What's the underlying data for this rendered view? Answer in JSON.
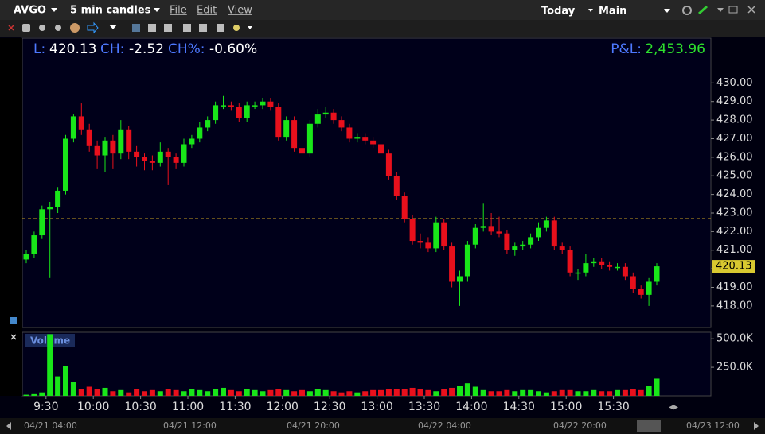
{
  "toolbar": {
    "symbol": "AVGO",
    "interval": "5 min candles",
    "menu": [
      "File",
      "Edit",
      "View"
    ],
    "period": "Today",
    "layout": "Main"
  },
  "header": {
    "last_label": "L:",
    "last": "420.13",
    "change_label": "CH:",
    "change": "-2.52",
    "change_pct_label": "CH%:",
    "change_pct": "-0.60%",
    "pnl_label": "P&L:",
    "pnl": "2,453.96"
  },
  "timeline": [
    "04/21 04:00",
    "04/21 12:00",
    "04/21 20:00",
    "04/22 04:00",
    "04/22 20:00",
    "04/23 12:00"
  ],
  "chart_data": [
    {
      "type": "candlestick",
      "up_color": "#19e619",
      "down_color": "#e8101c",
      "categories": [
        "9:20",
        "9:25",
        "9:30",
        "9:35",
        "9:40",
        "9:45",
        "9:50",
        "9:55",
        "10:00",
        "10:05",
        "10:10",
        "10:15",
        "10:20",
        "10:25",
        "10:30",
        "10:35",
        "10:40",
        "10:45",
        "10:50",
        "10:55",
        "11:00",
        "11:05",
        "11:10",
        "11:15",
        "11:20",
        "11:25",
        "11:30",
        "11:35",
        "11:40",
        "11:45",
        "11:50",
        "11:55",
        "12:00",
        "12:05",
        "12:10",
        "12:15",
        "12:20",
        "12:25",
        "12:30",
        "12:35",
        "12:40",
        "12:45",
        "12:50",
        "12:55",
        "13:00",
        "13:05",
        "13:10",
        "13:15",
        "13:20",
        "13:25",
        "13:30",
        "13:35",
        "13:40",
        "13:45",
        "13:50",
        "13:55",
        "14:00",
        "14:05",
        "14:10",
        "14:15",
        "14:20",
        "14:25",
        "14:30",
        "14:35",
        "14:40",
        "14:45",
        "14:50",
        "14:55",
        "15:00",
        "15:05",
        "15:10",
        "15:15",
        "15:20",
        "15:25",
        "15:30",
        "15:35",
        "15:40",
        "15:45",
        "15:50",
        "15:55",
        "16:00"
      ],
      "open": [
        420.5,
        420.8,
        421.8,
        423.2,
        423.3,
        424.2,
        427.0,
        428.2,
        427.5,
        426.6,
        426.1,
        426.9,
        426.2,
        427.5,
        426.3,
        426.0,
        425.8,
        425.7,
        426.3,
        426.0,
        425.7,
        426.7,
        427.0,
        427.6,
        428.0,
        428.8,
        428.8,
        428.7,
        428.1,
        428.8,
        428.8,
        429.0,
        428.7,
        427.1,
        428.0,
        426.5,
        426.2,
        427.8,
        428.3,
        428.4,
        428.0,
        427.6,
        427.0,
        427.1,
        426.9,
        426.7,
        426.2,
        425.0,
        423.9,
        422.7,
        421.5,
        421.4,
        421.1,
        422.5,
        421.2,
        419.3,
        419.6,
        421.3,
        422.2,
        422.3,
        422.0,
        421.9,
        421.0,
        421.2,
        421.3,
        421.7,
        422.2,
        422.6,
        421.2,
        421.0,
        419.8,
        419.8,
        420.3,
        420.4,
        420.2,
        420.1,
        420.1,
        419.6,
        418.9,
        418.6,
        419.3
      ],
      "high": [
        421.0,
        422.0,
        423.4,
        423.6,
        424.4,
        427.2,
        428.3,
        428.9,
        427.8,
        426.9,
        427.1,
        427.2,
        428.0,
        427.7,
        426.6,
        426.2,
        426.1,
        426.8,
        426.5,
        426.2,
        427.0,
        427.2,
        427.9,
        428.2,
        429.0,
        429.3,
        429.0,
        428.9,
        429.0,
        429.0,
        429.2,
        429.2,
        428.9,
        428.2,
        428.2,
        426.8,
        428.0,
        428.6,
        428.7,
        428.6,
        428.2,
        427.8,
        427.3,
        427.3,
        427.1,
        426.9,
        426.4,
        425.2,
        424.1,
        422.9,
        421.9,
        421.7,
        422.8,
        422.7,
        421.4,
        419.9,
        421.5,
        422.4,
        423.5,
        423.0,
        422.8,
        422.1,
        421.4,
        421.5,
        421.9,
        422.5,
        422.8,
        422.8,
        421.4,
        421.2,
        420.0,
        420.8,
        420.6,
        420.6,
        420.4,
        420.3,
        420.3,
        419.8,
        419.1,
        419.5,
        420.3
      ],
      "low": [
        420.3,
        420.6,
        421.6,
        419.5,
        423.0,
        424.0,
        426.8,
        427.2,
        426.3,
        425.4,
        425.2,
        425.4,
        425.9,
        425.9,
        425.5,
        425.3,
        425.3,
        425.5,
        424.5,
        425.4,
        425.5,
        426.5,
        426.8,
        427.4,
        427.8,
        428.6,
        428.5,
        427.9,
        427.9,
        428.6,
        428.6,
        428.5,
        426.9,
        426.9,
        426.3,
        426.0,
        426.0,
        427.6,
        428.1,
        427.8,
        427.4,
        426.8,
        426.8,
        426.7,
        426.5,
        426.0,
        424.8,
        423.7,
        422.5,
        421.3,
        421.1,
        420.9,
        420.9,
        421.0,
        419.0,
        418.0,
        419.3,
        421.1,
        422.0,
        421.8,
        421.7,
        420.8,
        420.7,
        421.0,
        421.1,
        421.5,
        422.0,
        421.0,
        420.8,
        419.6,
        419.4,
        419.6,
        420.1,
        420.0,
        419.9,
        419.9,
        419.4,
        418.7,
        418.4,
        418.0,
        419.1
      ],
      "close": [
        420.8,
        421.8,
        423.2,
        423.3,
        424.2,
        427.0,
        428.2,
        427.5,
        426.6,
        426.1,
        426.9,
        426.2,
        427.5,
        426.3,
        426.0,
        425.8,
        425.7,
        426.3,
        426.0,
        425.7,
        426.7,
        427.0,
        427.6,
        428.0,
        428.8,
        428.8,
        428.7,
        428.1,
        428.8,
        428.8,
        429.0,
        428.7,
        427.1,
        428.0,
        426.5,
        426.2,
        427.8,
        428.3,
        428.4,
        428.0,
        427.6,
        427.0,
        427.1,
        426.9,
        426.7,
        426.2,
        425.0,
        423.9,
        422.7,
        421.5,
        421.4,
        421.1,
        422.5,
        421.2,
        419.3,
        419.6,
        421.3,
        422.2,
        422.3,
        422.0,
        421.9,
        421.0,
        421.2,
        421.3,
        421.7,
        422.2,
        422.6,
        421.2,
        421.0,
        419.8,
        419.8,
        420.3,
        420.4,
        420.2,
        420.1,
        420.1,
        419.6,
        418.9,
        418.6,
        419.3,
        420.13
      ],
      "reference_line": 422.7,
      "xticks": [
        "9:30",
        "10:00",
        "10:30",
        "11:00",
        "11:30",
        "12:00",
        "12:30",
        "13:00",
        "13:30",
        "14:00",
        "14:30",
        "15:00",
        "15:30"
      ],
      "ylim": [
        416.84,
        432.41
      ],
      "yticks": [
        {
          "value": 418,
          "label": "418.00"
        },
        {
          "value": 419,
          "label": "419.00"
        },
        {
          "value": 420,
          "label": "420.00"
        },
        {
          "value": 421,
          "label": "421.00"
        },
        {
          "value": 422,
          "label": "422.00"
        },
        {
          "value": 423,
          "label": "423.00"
        },
        {
          "value": 424,
          "label": "424.00"
        },
        {
          "value": 425,
          "label": "425.00"
        },
        {
          "value": 426,
          "label": "426.00"
        },
        {
          "value": 427,
          "label": "427.00"
        },
        {
          "value": 428,
          "label": "428.00"
        },
        {
          "value": 429,
          "label": "429.00"
        },
        {
          "value": 430,
          "label": "430.00"
        }
      ]
    },
    {
      "type": "bar",
      "title": "Volume",
      "values": [
        10000,
        15000,
        30000,
        540000,
        170000,
        260000,
        120000,
        60000,
        80000,
        60000,
        70000,
        40000,
        50000,
        30000,
        60000,
        40000,
        50000,
        40000,
        60000,
        50000,
        40000,
        60000,
        50000,
        40000,
        60000,
        70000,
        50000,
        40000,
        60000,
        50000,
        40000,
        50000,
        60000,
        50000,
        40000,
        50000,
        40000,
        60000,
        50000,
        40000,
        30000,
        40000,
        30000,
        40000,
        50000,
        50000,
        60000,
        60000,
        60000,
        70000,
        60000,
        50000,
        40000,
        60000,
        70000,
        90000,
        110000,
        80000,
        50000,
        40000,
        40000,
        50000,
        40000,
        50000,
        50000,
        40000,
        30000,
        40000,
        50000,
        50000,
        40000,
        40000,
        50000,
        40000,
        40000,
        50000,
        50000,
        60000,
        50000,
        90000,
        150000
      ],
      "ylim": [
        0,
        557000
      ],
      "yticks": [
        {
          "value": 250000,
          "label": "250.0K"
        },
        {
          "value": 500000,
          "label": "500.0K"
        }
      ]
    }
  ]
}
